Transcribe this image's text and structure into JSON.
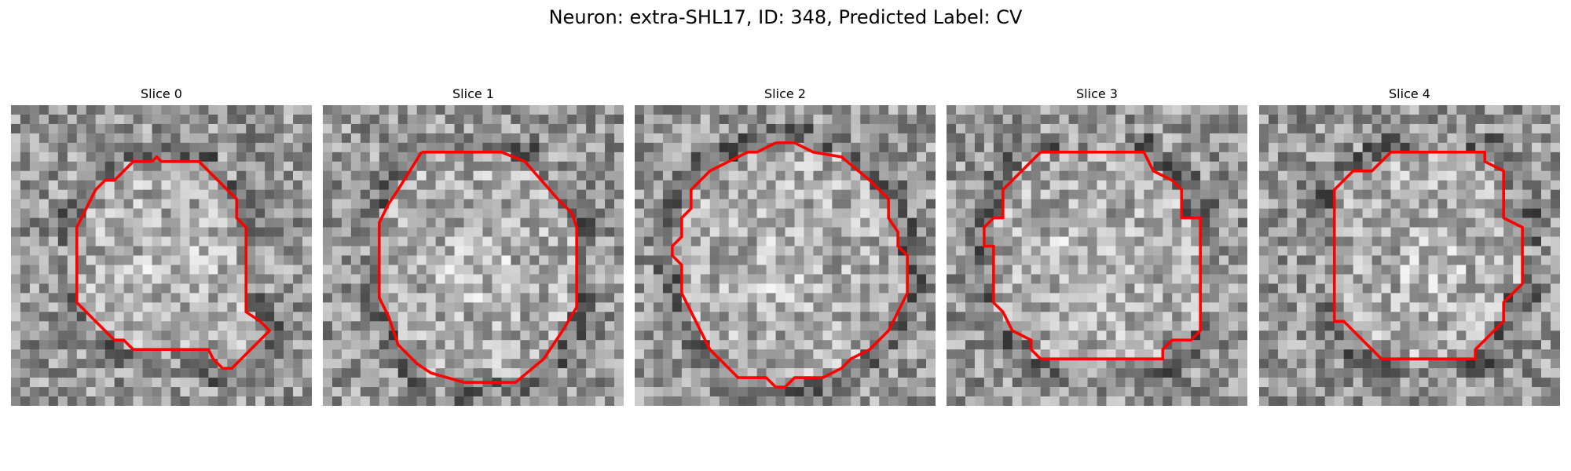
{
  "figure": {
    "title": "Neuron: extra-SHL17, ID: 348, Predicted Label: CV"
  },
  "panels": [
    {
      "title": "Slice 0",
      "seed": 11,
      "contour_color": "#ff0000",
      "contour": [
        [
          15.0,
          6.0
        ],
        [
          15.5,
          5.5
        ],
        [
          16.0,
          6.0
        ],
        [
          20.0,
          6.0
        ],
        [
          24.0,
          10.0
        ],
        [
          24.0,
          12.0
        ],
        [
          25.0,
          13.0
        ],
        [
          25.0,
          22.0
        ],
        [
          26.5,
          23.0
        ],
        [
          27.5,
          24.0
        ],
        [
          25.5,
          26.0
        ],
        [
          24.5,
          27.0
        ],
        [
          23.5,
          28.0
        ],
        [
          22.5,
          28.0
        ],
        [
          21.5,
          27.0
        ],
        [
          21.0,
          26.0
        ],
        [
          13.0,
          26.0
        ],
        [
          12.0,
          25.0
        ],
        [
          11.0,
          25.0
        ],
        [
          7.0,
          21.0
        ],
        [
          7.0,
          13.0
        ],
        [
          8.0,
          11.0
        ],
        [
          9.0,
          9.0
        ],
        [
          10.0,
          8.0
        ],
        [
          11.0,
          8.0
        ],
        [
          13.0,
          6.0
        ]
      ]
    },
    {
      "title": "Slice 1",
      "seed": 23,
      "contour_color": "#ff0000",
      "contour": [
        [
          10.5,
          5.0
        ],
        [
          19.0,
          5.0
        ],
        [
          21.5,
          6.0
        ],
        [
          25.0,
          10.0
        ],
        [
          26.5,
          11.5
        ],
        [
          27.0,
          13.0
        ],
        [
          27.0,
          21.5
        ],
        [
          25.5,
          24.0
        ],
        [
          23.5,
          27.0
        ],
        [
          20.5,
          29.5
        ],
        [
          15.0,
          29.5
        ],
        [
          11.5,
          28.5
        ],
        [
          10.0,
          27.5
        ],
        [
          8.0,
          25.5
        ],
        [
          7.0,
          22.5
        ],
        [
          6.0,
          20.5
        ],
        [
          6.0,
          12.5
        ],
        [
          7.0,
          10.5
        ],
        [
          8.0,
          9.0
        ]
      ]
    },
    {
      "title": "Slice 2",
      "seed": 37,
      "contour_color": "#ff0000",
      "contour": [
        [
          15.0,
          4.0
        ],
        [
          17.0,
          4.0
        ],
        [
          19.0,
          5.0
        ],
        [
          22.0,
          5.5
        ],
        [
          25.0,
          8.0
        ],
        [
          27.0,
          10.0
        ],
        [
          27.0,
          12.0
        ],
        [
          28.0,
          13.5
        ],
        [
          28.0,
          15.0
        ],
        [
          29.0,
          16.0
        ],
        [
          29.0,
          20.0
        ],
        [
          28.0,
          22.0
        ],
        [
          27.0,
          24.0
        ],
        [
          25.0,
          26.0
        ],
        [
          23.0,
          27.0
        ],
        [
          22.0,
          28.0
        ],
        [
          20.0,
          29.0
        ],
        [
          17.0,
          29.0
        ],
        [
          16.0,
          30.0
        ],
        [
          15.0,
          30.0
        ],
        [
          14.0,
          29.0
        ],
        [
          11.0,
          29.0
        ],
        [
          10.0,
          28.0
        ],
        [
          8.0,
          26.0
        ],
        [
          7.0,
          24.0
        ],
        [
          6.0,
          22.0
        ],
        [
          5.0,
          20.0
        ],
        [
          5.0,
          17.0
        ],
        [
          4.0,
          16.0
        ],
        [
          4.0,
          15.0
        ],
        [
          5.0,
          14.0
        ],
        [
          5.0,
          12.0
        ],
        [
          6.0,
          11.0
        ],
        [
          6.0,
          9.0
        ],
        [
          8.0,
          7.0
        ],
        [
          10.0,
          6.0
        ],
        [
          12.0,
          5.0
        ],
        [
          13.0,
          5.0
        ]
      ]
    },
    {
      "title": "Slice 3",
      "seed": 51,
      "contour_color": "#ff0000",
      "contour": [
        [
          10.0,
          5.0
        ],
        [
          21.0,
          5.0
        ],
        [
          22.0,
          7.0
        ],
        [
          24.0,
          8.0
        ],
        [
          25.0,
          9.0
        ],
        [
          25.0,
          12.0
        ],
        [
          27.0,
          12.0
        ],
        [
          27.0,
          24.0
        ],
        [
          26.0,
          25.0
        ],
        [
          24.0,
          25.0
        ],
        [
          23.0,
          26.0
        ],
        [
          23.0,
          27.0
        ],
        [
          10.0,
          27.0
        ],
        [
          9.0,
          26.0
        ],
        [
          9.0,
          25.0
        ],
        [
          7.0,
          24.0
        ],
        [
          6.0,
          22.0
        ],
        [
          5.0,
          21.0
        ],
        [
          5.0,
          15.0
        ],
        [
          4.0,
          15.0
        ],
        [
          4.0,
          13.0
        ],
        [
          5.0,
          12.0
        ],
        [
          6.0,
          12.0
        ],
        [
          6.0,
          9.0
        ],
        [
          7.0,
          8.0
        ],
        [
          8.0,
          7.0
        ],
        [
          9.0,
          6.0
        ]
      ]
    },
    {
      "title": "Slice 4",
      "seed": 67,
      "contour_color": "#ff0000",
      "contour": [
        [
          14.0,
          5.0
        ],
        [
          24.0,
          5.0
        ],
        [
          24.0,
          6.0
        ],
        [
          26.0,
          7.0
        ],
        [
          26.0,
          12.0
        ],
        [
          28.0,
          13.0
        ],
        [
          28.0,
          19.0
        ],
        [
          27.0,
          20.0
        ],
        [
          26.0,
          21.0
        ],
        [
          26.0,
          23.0
        ],
        [
          25.0,
          24.0
        ],
        [
          24.0,
          25.0
        ],
        [
          23.0,
          26.0
        ],
        [
          23.0,
          27.0
        ],
        [
          13.0,
          27.0
        ],
        [
          12.0,
          26.0
        ],
        [
          11.0,
          25.0
        ],
        [
          10.0,
          24.0
        ],
        [
          9.0,
          23.0
        ],
        [
          8.0,
          23.0
        ],
        [
          8.0,
          9.0
        ],
        [
          9.0,
          8.0
        ],
        [
          10.0,
          7.0
        ],
        [
          12.0,
          7.0
        ],
        [
          13.0,
          6.0
        ]
      ]
    }
  ]
}
